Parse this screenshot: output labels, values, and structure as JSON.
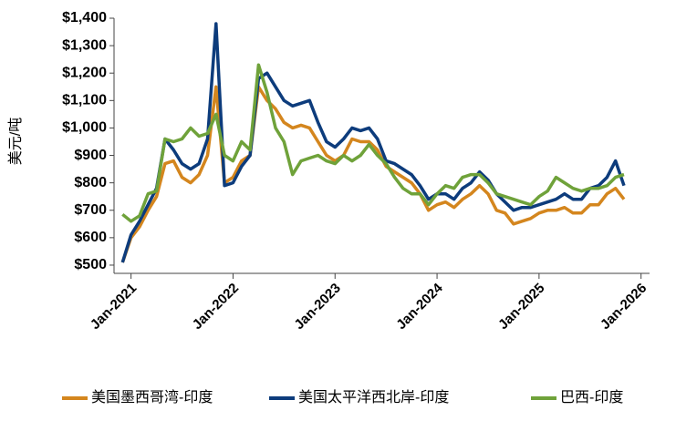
{
  "chart_data": {
    "type": "line",
    "y_label": "美元/吨",
    "x": [
      "2020-12",
      "2021-01",
      "2021-02",
      "2021-03",
      "2021-04",
      "2021-05",
      "2021-06",
      "2021-07",
      "2021-08",
      "2021-09",
      "2021-10",
      "2021-11",
      "2021-12",
      "2022-01",
      "2022-02",
      "2022-03",
      "2022-04",
      "2022-05",
      "2022-06",
      "2022-07",
      "2022-08",
      "2022-09",
      "2022-10",
      "2022-11",
      "2022-12",
      "2023-01",
      "2023-02",
      "2023-03",
      "2023-04",
      "2023-05",
      "2023-06",
      "2023-07",
      "2023-08",
      "2023-09",
      "2023-10",
      "2023-11",
      "2023-12",
      "2024-01",
      "2024-02",
      "2024-03",
      "2024-04",
      "2024-05",
      "2024-06",
      "2024-07",
      "2024-08",
      "2024-09",
      "2024-10",
      "2024-11",
      "2024-12",
      "2025-01",
      "2025-02",
      "2025-03",
      "2025-04",
      "2025-05",
      "2025-06",
      "2025-07",
      "2025-08",
      "2025-09",
      "2025-10",
      "2025-11"
    ],
    "series": [
      {
        "name": "美国墨西哥湾-印度",
        "color": "#d4861e",
        "values": [
          510,
          600,
          640,
          700,
          750,
          870,
          880,
          820,
          800,
          830,
          900,
          1150,
          800,
          820,
          880,
          900,
          1150,
          1100,
          1070,
          1020,
          1000,
          1010,
          1000,
          950,
          900,
          880,
          900,
          960,
          950,
          950,
          920,
          860,
          840,
          820,
          800,
          760,
          700,
          720,
          730,
          710,
          740,
          760,
          790,
          760,
          700,
          690,
          650,
          660,
          670,
          690,
          700,
          700,
          710,
          690,
          690,
          720,
          720,
          760,
          780,
          740
        ]
      },
      {
        "name": "美国太平洋西北岸-印度",
        "color": "#0d3c7c",
        "values": [
          510,
          610,
          660,
          720,
          780,
          960,
          920,
          870,
          850,
          870,
          960,
          1380,
          790,
          800,
          860,
          900,
          1180,
          1200,
          1150,
          1100,
          1080,
          1090,
          1100,
          1020,
          950,
          930,
          960,
          1000,
          990,
          1000,
          960,
          880,
          870,
          850,
          830,
          790,
          740,
          760,
          760,
          740,
          780,
          800,
          840,
          810,
          760,
          730,
          700,
          710,
          710,
          720,
          730,
          740,
          760,
          740,
          740,
          780,
          790,
          820,
          880,
          790
        ]
      },
      {
        "name": "巴西-印度",
        "color": "#6fa23a",
        "values": [
          685,
          660,
          680,
          760,
          770,
          960,
          950,
          960,
          1000,
          970,
          980,
          1050,
          900,
          880,
          950,
          920,
          1230,
          1130,
          1000,
          950,
          830,
          880,
          890,
          900,
          880,
          870,
          900,
          880,
          900,
          940,
          900,
          870,
          820,
          780,
          760,
          760,
          720,
          760,
          790,
          780,
          820,
          830,
          830,
          800,
          760,
          750,
          740,
          730,
          720,
          750,
          770,
          820,
          800,
          780,
          770,
          780,
          780,
          790,
          820,
          830
        ]
      }
    ],
    "xlim": [
      "2020-11",
      "2026-02"
    ],
    "xticks": [
      {
        "value": "2021-01",
        "label": "Jan-2021"
      },
      {
        "value": "2022-01",
        "label": "Jan-2022"
      },
      {
        "value": "2023-01",
        "label": "Jan-2023"
      },
      {
        "value": "2024-01",
        "label": "Jan-2024"
      },
      {
        "value": "2025-01",
        "label": "Jan-2025"
      },
      {
        "value": "2026-01",
        "label": "Jan-2026"
      }
    ],
    "ylim": [
      470,
      1400
    ],
    "yticks": [
      {
        "value": 500,
        "label": "$500"
      },
      {
        "value": 600,
        "label": "$600"
      },
      {
        "value": 700,
        "label": "$700"
      },
      {
        "value": 800,
        "label": "$800"
      },
      {
        "value": 900,
        "label": "$900"
      },
      {
        "value": 1000,
        "label": "$1,000"
      },
      {
        "value": 1100,
        "label": "$1,100"
      },
      {
        "value": 1200,
        "label": "$1,200"
      },
      {
        "value": 1300,
        "label": "$1,300"
      },
      {
        "value": 1400,
        "label": "$1,400"
      }
    ]
  }
}
